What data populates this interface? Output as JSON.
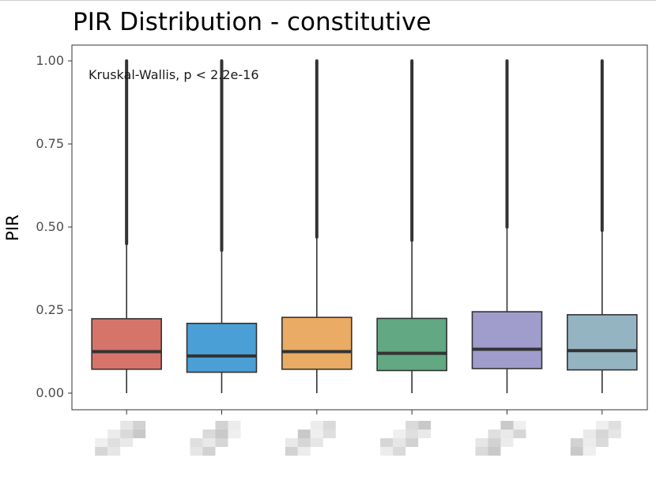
{
  "chart_data": {
    "type": "box",
    "title": "PIR Distribution - constitutive",
    "xlabel": "",
    "ylabel": "PIR",
    "ylim": [
      0,
      1
    ],
    "yticks": [
      "0.00",
      "0.25",
      "0.50",
      "0.75",
      "1.00"
    ],
    "yticks_values": [
      0,
      0.25,
      0.5,
      0.75,
      1.0
    ],
    "annotation": "Kruskal-Wallis, p < 2.2e-16",
    "grid": false,
    "legend": "none",
    "categories_note": "category labels are pixelated/illegible",
    "boxes": [
      {
        "color": "#d6746a",
        "whisker_low": 0.0,
        "q1": 0.072,
        "median": 0.125,
        "q3": 0.224,
        "whisker_high": 0.45,
        "outliers_from": 0.45,
        "outliers_to": 1.0
      },
      {
        "color": "#4a9fd6",
        "whisker_low": 0.0,
        "q1": 0.063,
        "median": 0.112,
        "q3": 0.21,
        "whisker_high": 0.43,
        "outliers_from": 0.43,
        "outliers_to": 1.0
      },
      {
        "color": "#eaab64",
        "whisker_low": 0.0,
        "q1": 0.072,
        "median": 0.125,
        "q3": 0.228,
        "whisker_high": 0.47,
        "outliers_from": 0.47,
        "outliers_to": 1.0
      },
      {
        "color": "#62a882",
        "whisker_low": 0.0,
        "q1": 0.068,
        "median": 0.12,
        "q3": 0.225,
        "whisker_high": 0.46,
        "outliers_from": 0.46,
        "outliers_to": 1.0
      },
      {
        "color": "#a09ccb",
        "whisker_low": 0.0,
        "q1": 0.074,
        "median": 0.132,
        "q3": 0.245,
        "whisker_high": 0.5,
        "outliers_from": 0.5,
        "outliers_to": 1.0
      },
      {
        "color": "#94b4c2",
        "whisker_low": 0.0,
        "q1": 0.07,
        "median": 0.128,
        "q3": 0.236,
        "whisker_high": 0.49,
        "outliers_from": 0.49,
        "outliers_to": 1.0
      }
    ]
  }
}
